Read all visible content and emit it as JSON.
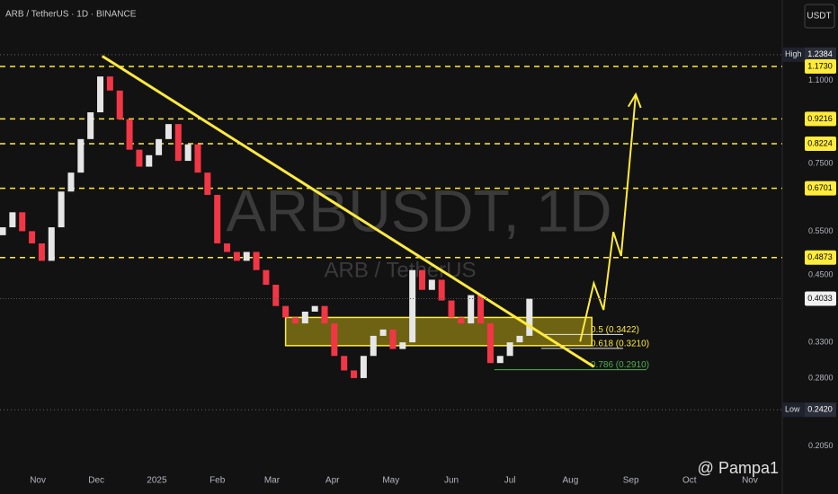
{
  "header": "ARB / TetherUS · 1D · BINANCE",
  "currency_button": "USDT",
  "watermark": {
    "title": "ARBUSDT, 1D",
    "subtitle": "ARB / TetherUS"
  },
  "signature": "@ Pampa1",
  "chart_data": {
    "type": "candlestick",
    "log_scale": true,
    "up_color": "#e6e6e6",
    "down_color": "#f23645",
    "x": [
      -18,
      -13,
      -8,
      -3,
      2,
      7,
      12,
      17,
      22,
      27,
      32,
      37,
      42,
      47,
      52,
      57,
      62,
      67,
      72,
      77,
      82,
      87,
      92,
      97,
      102,
      107,
      112,
      117,
      122,
      127,
      132,
      137,
      142,
      147,
      152,
      157,
      162,
      167,
      172,
      177,
      182,
      187,
      192,
      197,
      202,
      207,
      212,
      217,
      222,
      227,
      232,
      237,
      242,
      247,
      252
    ],
    "open": [
      0.54,
      0.56,
      0.6,
      0.55,
      0.52,
      0.48,
      0.56,
      0.66,
      0.72,
      0.84,
      0.95,
      1.12,
      1.05,
      0.92,
      0.8,
      0.74,
      0.78,
      0.84,
      0.9,
      0.76,
      0.82,
      0.72,
      0.65,
      0.52,
      0.5,
      0.48,
      0.5,
      0.46,
      0.43,
      0.39,
      0.37,
      0.36,
      0.38,
      0.39,
      0.36,
      0.31,
      0.29,
      0.28,
      0.31,
      0.34,
      0.35,
      0.32,
      0.33,
      0.46,
      0.42,
      0.44,
      0.4,
      0.37,
      0.36,
      0.41,
      0.36,
      0.3,
      0.31,
      0.33,
      0.34
    ],
    "high": {
      "name": "High",
      "value": 1.2384,
      "label": "1.2384"
    },
    "low": {
      "name": "Low",
      "value": 0.242,
      "label": "0.2420"
    },
    "close": [
      0.56,
      0.6,
      0.55,
      0.52,
      0.48,
      0.56,
      0.66,
      0.72,
      0.84,
      0.95,
      1.12,
      1.05,
      0.92,
      0.8,
      0.74,
      0.78,
      0.84,
      0.9,
      0.76,
      0.82,
      0.72,
      0.65,
      0.52,
      0.5,
      0.48,
      0.5,
      0.46,
      0.43,
      0.39,
      0.37,
      0.36,
      0.38,
      0.39,
      0.36,
      0.31,
      0.29,
      0.28,
      0.31,
      0.34,
      0.35,
      0.32,
      0.33,
      0.46,
      0.42,
      0.44,
      0.4,
      0.37,
      0.36,
      0.41,
      0.36,
      0.3,
      0.31,
      0.33,
      0.34,
      0.4033
    ],
    "xlim": [
      -19.4,
      381.6
    ],
    "ylim": [
      0.186,
      1.592
    ],
    "xticks": [
      {
        "value": 0,
        "label": "Nov"
      },
      {
        "value": 30,
        "label": "Dec"
      },
      {
        "value": 61,
        "label": "2025"
      },
      {
        "value": 92,
        "label": "Feb"
      },
      {
        "value": 120,
        "label": "Mar"
      },
      {
        "value": 151,
        "label": "Apr"
      },
      {
        "value": 181,
        "label": "May"
      },
      {
        "value": 212,
        "label": "Jun"
      },
      {
        "value": 242,
        "label": "Jul"
      },
      {
        "value": 273,
        "label": "Aug"
      },
      {
        "value": 304,
        "label": "Sep"
      },
      {
        "value": 334,
        "label": "Oct"
      },
      {
        "value": 365,
        "label": "Nov"
      }
    ],
    "yticks": [
      {
        "value": 1.1,
        "label": "1.1000"
      },
      {
        "value": 0.75,
        "label": "0.7500"
      },
      {
        "value": 0.55,
        "label": "0.5500"
      },
      {
        "value": 0.45,
        "label": "0.4500"
      },
      {
        "value": 0.33,
        "label": "0.3300"
      },
      {
        "value": 0.28,
        "label": "0.2800"
      },
      {
        "value": 0.205,
        "label": "0.2050"
      }
    ],
    "levels": [
      {
        "value": 1.173,
        "label": "1.1730"
      },
      {
        "value": 0.9216,
        "label": "0.9216"
      },
      {
        "value": 0.8224,
        "label": "0.8224"
      },
      {
        "value": 0.6701,
        "label": "0.6701"
      },
      {
        "value": 0.4873,
        "label": "0.4873"
      }
    ],
    "level_color": "#ffeb3b",
    "last_price": {
      "value": 0.4033,
      "label": "0.4033"
    },
    "trendline": {
      "x": [
        33,
        285
      ],
      "y": [
        1.23,
        0.295
      ]
    },
    "zone": {
      "x": [
        127,
        284
      ],
      "y": [
        0.325,
        0.37
      ]
    },
    "projection": {
      "x": [
        278,
        285,
        290,
        295,
        299,
        306.5
      ],
      "y": [
        0.331,
        0.433,
        0.383,
        0.548,
        0.491,
        1.032
      ]
    },
    "fib": [
      {
        "label": "0.5 (0.3422)",
        "value": 0.3422,
        "x": [
          258,
          300
        ],
        "color": "#e6e6e6"
      },
      {
        "label": "0.618 (0.3210)",
        "value": 0.321,
        "x": [
          258,
          300
        ],
        "color": "#e6e6e6"
      },
      {
        "label": "0.786 (0.2910)",
        "value": 0.291,
        "x": [
          234,
          312
        ],
        "color": "#4caf50"
      }
    ]
  }
}
